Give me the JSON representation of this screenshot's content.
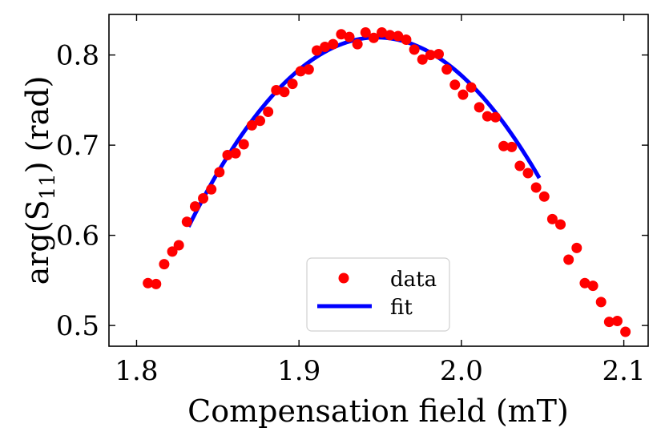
{
  "chart_data": {
    "type": "scatter",
    "title": "",
    "xlabel": "Compensation field (mT)",
    "ylabel_main": "arg(S",
    "ylabel_sub": "11",
    "ylabel_tail": ") (rad)",
    "xlim": [
      1.783,
      2.115
    ],
    "ylim": [
      0.477,
      0.845
    ],
    "xticks": [
      1.8,
      1.9,
      2.0,
      2.1
    ],
    "xtick_labels": [
      "1.8",
      "1.9",
      "2.0",
      "2.1"
    ],
    "yticks": [
      0.5,
      0.6,
      0.7,
      0.8
    ],
    "ytick_labels": [
      "0.5",
      "0.6",
      "0.7",
      "0.8"
    ],
    "legend_position": "lower-center",
    "series": [
      {
        "name": "data",
        "style": "markers",
        "color": "#ff0000",
        "x": [
          1.807,
          1.812,
          1.817,
          1.822,
          1.826,
          1.831,
          1.836,
          1.841,
          1.846,
          1.851,
          1.856,
          1.861,
          1.866,
          1.871,
          1.876,
          1.881,
          1.886,
          1.891,
          1.896,
          1.901,
          1.906,
          1.911,
          1.916,
          1.921,
          1.926,
          1.931,
          1.936,
          1.941,
          1.946,
          1.951,
          1.956,
          1.961,
          1.966,
          1.971,
          1.976,
          1.981,
          1.986,
          1.991,
          1.996,
          2.001,
          2.006,
          2.011,
          2.016,
          2.021,
          2.026,
          2.031,
          2.036,
          2.041,
          2.046,
          2.051,
          2.056,
          2.061,
          2.066,
          2.071,
          2.076,
          2.081,
          2.086,
          2.091,
          2.096,
          2.101
        ],
        "y": [
          0.547,
          0.546,
          0.568,
          0.582,
          0.589,
          0.615,
          0.632,
          0.641,
          0.651,
          0.67,
          0.689,
          0.691,
          0.701,
          0.722,
          0.727,
          0.737,
          0.761,
          0.759,
          0.768,
          0.782,
          0.784,
          0.805,
          0.809,
          0.812,
          0.823,
          0.82,
          0.812,
          0.825,
          0.819,
          0.825,
          0.822,
          0.821,
          0.817,
          0.806,
          0.795,
          0.8,
          0.801,
          0.784,
          0.767,
          0.756,
          0.764,
          0.742,
          0.732,
          0.731,
          0.699,
          0.698,
          0.677,
          0.669,
          0.653,
          0.643,
          0.618,
          0.612,
          0.573,
          0.586,
          0.547,
          0.544,
          0.526,
          0.504,
          0.505,
          0.493
        ]
      },
      {
        "name": "fit",
        "style": "line",
        "color": "#0000ff",
        "x_range": [
          1.832,
          2.048
        ],
        "model": "quadratic",
        "vertex_x": 1.948,
        "vertex_y": 0.8195,
        "curvature": -15.6
      }
    ]
  }
}
